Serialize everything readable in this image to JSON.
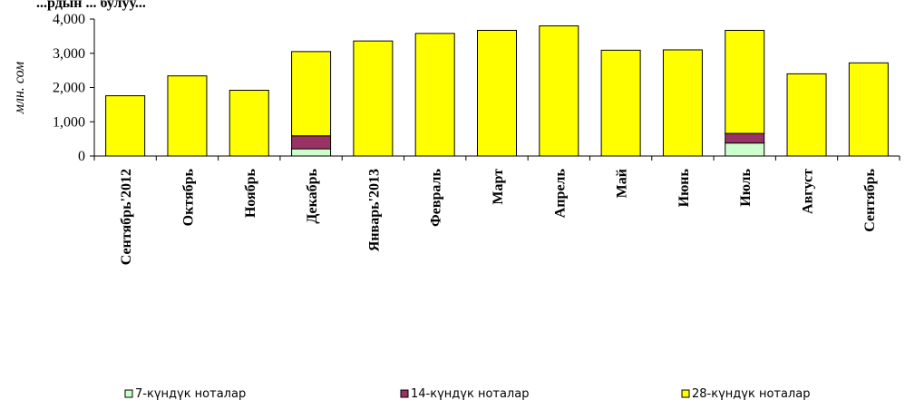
{
  "chart_data": {
    "type": "bar",
    "stacked": true,
    "title": "...рдын ... булуу...",
    "ylabel": "млн. сом",
    "ylim": [
      0,
      4000
    ],
    "yticks": [
      "0",
      "1,000",
      "2,000",
      "3,000",
      "4,000"
    ],
    "ytick_values": [
      0,
      1000,
      2000,
      3000,
      4000
    ],
    "categories": [
      "Сентябрь'2012",
      "Октябрь",
      "Ноябрь",
      "Декабрь",
      "Январь'2013",
      "Февраль",
      "Март",
      "Апрель",
      "Май",
      "Июнь",
      "Июль",
      "Август",
      "Сентябрь"
    ],
    "series": [
      {
        "name": "7-күндүк ноталар",
        "color": "#ccffcc",
        "values": [
          0,
          0,
          0,
          210,
          0,
          0,
          0,
          0,
          0,
          0,
          380,
          0,
          0
        ]
      },
      {
        "name": "14-күндүк ноталар",
        "color": "#993366",
        "values": [
          0,
          0,
          0,
          380,
          0,
          0,
          0,
          0,
          0,
          0,
          280,
          0,
          0
        ]
      },
      {
        "name": "28-күндүк ноталар",
        "color": "#ffff00",
        "values": [
          1760,
          2340,
          1920,
          2460,
          3360,
          3580,
          3670,
          3800,
          3090,
          3100,
          3010,
          2400,
          2720
        ]
      }
    ],
    "legend_position": "bottom",
    "grid": false
  }
}
